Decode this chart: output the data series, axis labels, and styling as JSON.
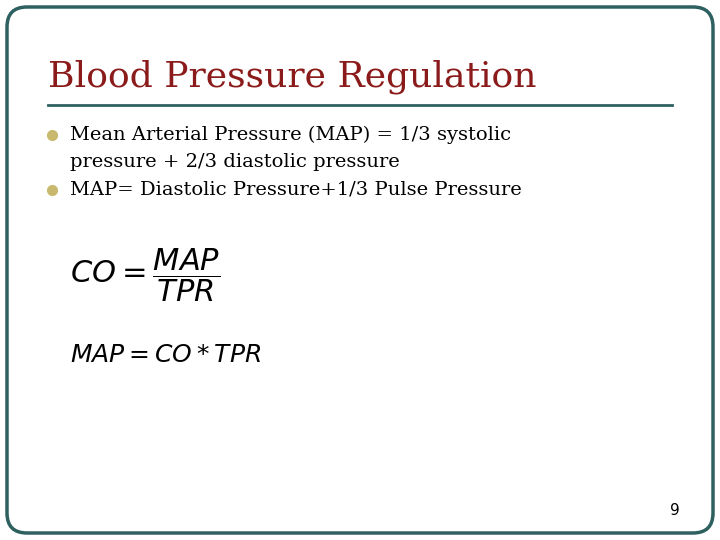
{
  "title": "Blood Pressure Regulation",
  "title_color": "#8B1A1A",
  "title_fontsize": 26,
  "bullet1_line1": "Mean Arterial Pressure (MAP) = 1/3 systolic",
  "bullet1_line2": "pressure + 2/3 diastolic pressure",
  "bullet2": "MAP= Diastolic Pressure+1/3 Pulse Pressure",
  "bullet_fontsize": 14,
  "bullet_color": "#000000",
  "bullet_marker_color": "#C8B96E",
  "formula1": "$CO = \\dfrac{MAP}{TPR}$",
  "formula2": "$MAP = CO*TPR$",
  "formula1_fontsize": 22,
  "formula2_fontsize": 18,
  "line_color": "#2F6060",
  "border_color": "#2F6060",
  "background_color": "#FFFFFF",
  "page_number": "9",
  "page_number_color": "#000000",
  "page_number_fontsize": 11
}
